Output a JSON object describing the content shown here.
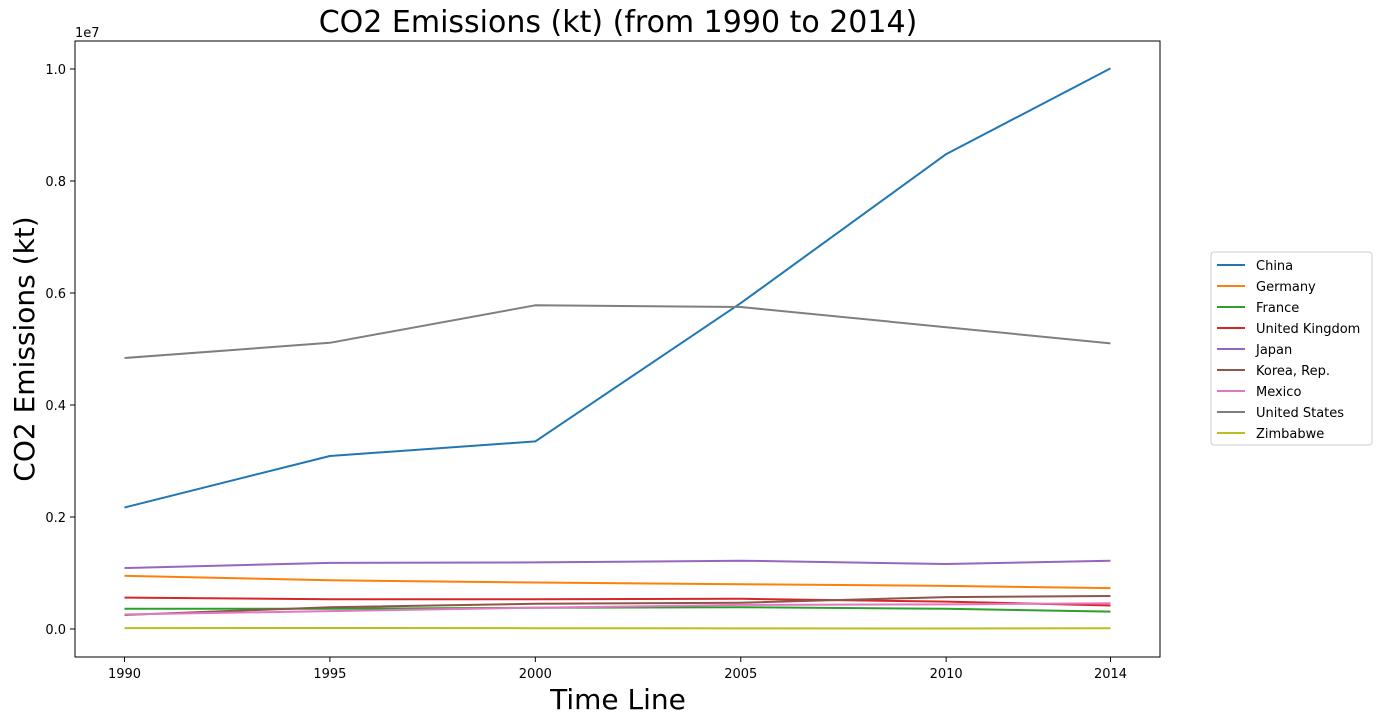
{
  "chart_data": {
    "type": "line",
    "title": "CO2 Emissions (kt) (from 1990 to 2014)",
    "xlabel": "Time Line",
    "ylabel": "CO2 Emissions (kt)",
    "y_offset_label": "1e7",
    "x": [
      1990,
      1995,
      2000,
      2005,
      2010,
      2014
    ],
    "x_tick_labels": [
      "1990",
      "1995",
      "2000",
      "2005",
      "2010",
      "2014"
    ],
    "y_ticks": [
      0.0,
      0.2,
      0.4,
      0.6,
      0.8,
      1.0
    ],
    "y_tick_labels": [
      "0.0",
      "0.2",
      "0.4",
      "0.6",
      "0.8",
      "1.0"
    ],
    "ylim": [
      -0.05,
      1.05
    ],
    "y_scale": 10000000,
    "grid": false,
    "legend_position": "right",
    "series": [
      {
        "name": "China",
        "color": "#1f77b4",
        "values": [
          2170000,
          3090000,
          3350000,
          5820000,
          8480000,
          10010000
        ]
      },
      {
        "name": "Germany",
        "color": "#ff7f0e",
        "values": [
          950000,
          870000,
          830000,
          800000,
          770000,
          730000
        ]
      },
      {
        "name": "France",
        "color": "#2ca02c",
        "values": [
          360000,
          360000,
          380000,
          390000,
          360000,
          310000
        ]
      },
      {
        "name": "United Kingdom",
        "color": "#d62728",
        "values": [
          560000,
          530000,
          530000,
          540000,
          490000,
          420000
        ]
      },
      {
        "name": "Japan",
        "color": "#9467bd",
        "values": [
          1090000,
          1180000,
          1190000,
          1220000,
          1160000,
          1220000
        ]
      },
      {
        "name": "Korea, Rep.",
        "color": "#8c564b",
        "values": [
          250000,
          390000,
          450000,
          470000,
          570000,
          590000
        ]
      },
      {
        "name": "Mexico",
        "color": "#e377c2",
        "values": [
          260000,
          320000,
          380000,
          430000,
          440000,
          460000
        ]
      },
      {
        "name": "United States",
        "color": "#7f7f7f",
        "values": [
          4840000,
          5110000,
          5780000,
          5750000,
          5390000,
          5100000
        ]
      },
      {
        "name": "Zimbabwe",
        "color": "#bcbd22",
        "values": [
          16000,
          18000,
          15000,
          11000,
          9000,
          12000
        ]
      }
    ]
  }
}
